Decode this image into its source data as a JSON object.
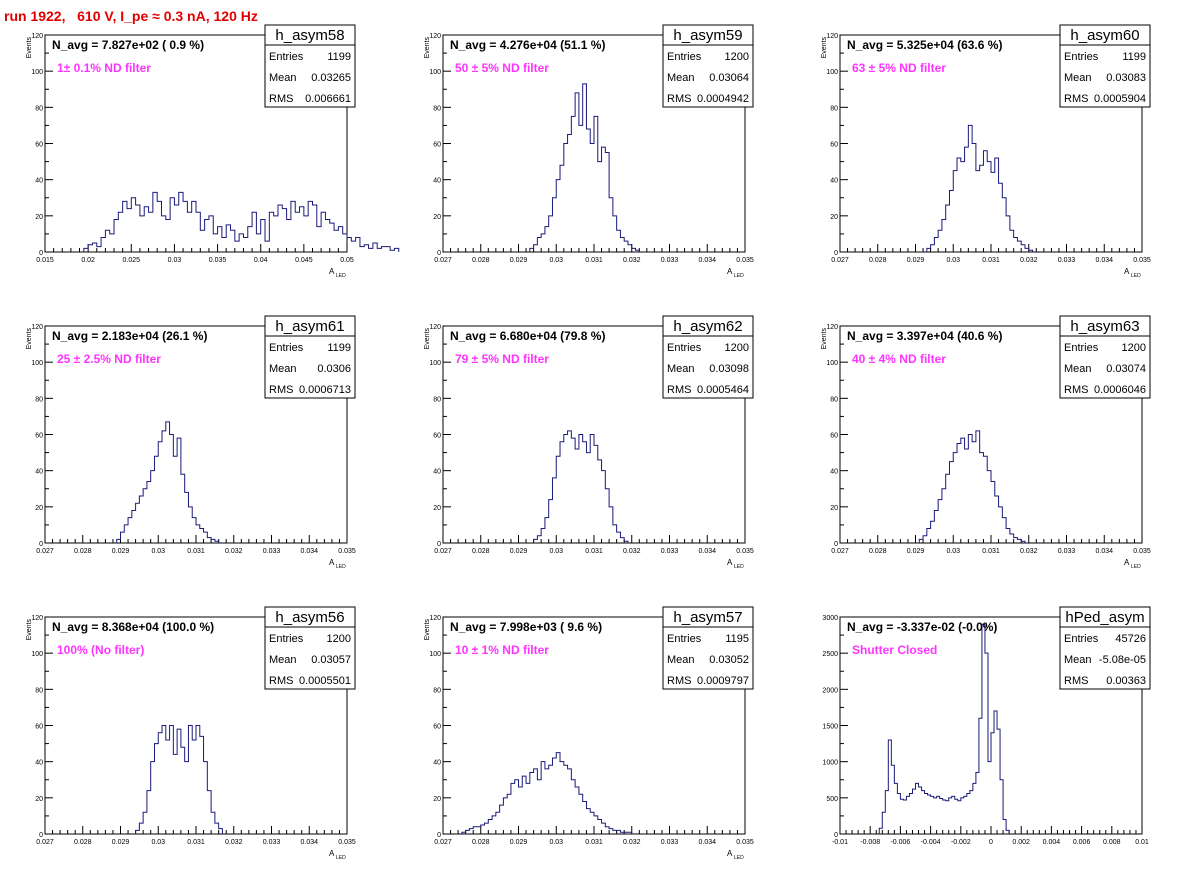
{
  "title": "run 1922,   610 V, I_pe ≈ 0.3 nA, 120 Hz",
  "stats_labels": {
    "entries": "Entries",
    "mean": "Mean",
    "rms": "RMS"
  },
  "colors": {
    "line": "#1a1a7a",
    "title": "#e00000",
    "filter": "#ff33ff"
  },
  "chart_data": [
    {
      "type": "histogram",
      "name": "h_asym58",
      "navg": "N_avg = 7.827e+02 ( 0.9 %)",
      "filter": "1± 0.1% ND filter",
      "entries": "1199",
      "mean": "0.03265",
      "rms": "0.006661",
      "ylabel": "Events",
      "xlabel": "A",
      "xlabel_sub": "LED",
      "xlim": [
        0.015,
        0.05
      ],
      "ylim": [
        0,
        120
      ],
      "xticks": [
        "0.015",
        "0.02",
        "0.025",
        "0.03",
        "0.035",
        "0.04",
        "0.045",
        "0.05"
      ],
      "yticks": [
        "0",
        "20",
        "40",
        "60",
        "80",
        "100",
        "120"
      ],
      "bin_start": 0.0195,
      "bin_width": 0.0005,
      "values": [
        2,
        4,
        5,
        3,
        8,
        12,
        10,
        18,
        22,
        28,
        24,
        30,
        26,
        20,
        25,
        22,
        33,
        28,
        20,
        18,
        30,
        26,
        33,
        28,
        22,
        28,
        22,
        12,
        18,
        20,
        10,
        14,
        8,
        15,
        12,
        6,
        10,
        8,
        14,
        22,
        10,
        18,
        6,
        22,
        20,
        26,
        24,
        18,
        28,
        22,
        25,
        20,
        28,
        26,
        14,
        22,
        18,
        16,
        12,
        14,
        10,
        8,
        6,
        8,
        3,
        4,
        2,
        5,
        2,
        3,
        3,
        1,
        2
      ]
    },
    {
      "type": "histogram",
      "name": "h_asym59",
      "navg": "N_avg = 4.276e+04 (51.1 %)",
      "filter": "50 ± 5% ND filter",
      "entries": "1200",
      "mean": "0.03064",
      "rms": "0.0004942",
      "ylabel": "Events",
      "xlabel": "A",
      "xlabel_sub": "LED",
      "xlim": [
        0.027,
        0.035
      ],
      "ylim": [
        0,
        120
      ],
      "xticks": [
        "0.027",
        "0.028",
        "0.029",
        "0.03",
        "0.031",
        "0.032",
        "0.033",
        "0.034",
        "0.035"
      ],
      "yticks": [
        "0",
        "20",
        "40",
        "60",
        "80",
        "100",
        "120"
      ],
      "bin_start": 0.0293,
      "bin_width": 0.0001,
      "values": [
        2,
        4,
        8,
        10,
        14,
        20,
        30,
        40,
        48,
        60,
        65,
        75,
        88,
        70,
        93,
        68,
        60,
        75,
        50,
        58,
        55,
        30,
        20,
        12,
        8,
        6,
        4,
        2,
        1
      ]
    },
    {
      "type": "histogram",
      "name": "h_asym60",
      "navg": "N_avg = 5.325e+04 (63.6 %)",
      "filter": "63 ± 5% ND filter",
      "entries": "1199",
      "mean": "0.03083",
      "rms": "0.0005904",
      "ylabel": "Events",
      "xlabel": "A",
      "xlabel_sub": "LED",
      "xlim": [
        0.027,
        0.035
      ],
      "ylim": [
        0,
        120
      ],
      "xticks": [
        "0.027",
        "0.028",
        "0.029",
        "0.03",
        "0.031",
        "0.032",
        "0.033",
        "0.034",
        "0.035"
      ],
      "yticks": [
        "0",
        "20",
        "40",
        "60",
        "80",
        "100",
        "120"
      ],
      "bin_start": 0.0293,
      "bin_width": 0.0001,
      "values": [
        2,
        4,
        8,
        12,
        18,
        26,
        34,
        45,
        52,
        50,
        58,
        70,
        60,
        45,
        48,
        56,
        50,
        44,
        52,
        38,
        30,
        20,
        12,
        8,
        6,
        4,
        2,
        1
      ]
    },
    {
      "type": "histogram",
      "name": "h_asym61",
      "navg": "N_avg = 2.183e+04 (26.1 %)",
      "filter": "25 ± 2.5% ND filter",
      "entries": "1199",
      "mean": "0.0306",
      "rms": "0.0006713",
      "ylabel": "Events",
      "xlabel": "A",
      "xlabel_sub": "LED",
      "xlim": [
        0.027,
        0.035
      ],
      "ylim": [
        0,
        120
      ],
      "xticks": [
        "0.027",
        "0.028",
        "0.029",
        "0.03",
        "0.031",
        "0.032",
        "0.033",
        "0.034",
        "0.035"
      ],
      "yticks": [
        "0",
        "20",
        "40",
        "60",
        "80",
        "100",
        "120"
      ],
      "bin_start": 0.0289,
      "bin_width": 0.0001,
      "values": [
        2,
        6,
        10,
        14,
        18,
        22,
        26,
        30,
        34,
        40,
        48,
        56,
        62,
        67,
        60,
        48,
        58,
        38,
        28,
        20,
        14,
        10,
        8,
        6,
        3,
        2,
        1
      ]
    },
    {
      "type": "histogram",
      "name": "h_asym62",
      "navg": "N_avg = 6.680e+04 (79.8 %)",
      "filter": "79 ± 5% ND filter",
      "entries": "1200",
      "mean": "0.03098",
      "rms": "0.0005464",
      "ylabel": "Events",
      "xlabel": "A",
      "xlabel_sub": "LED",
      "xlim": [
        0.027,
        0.035
      ],
      "ylim": [
        0,
        120
      ],
      "xticks": [
        "0.027",
        "0.028",
        "0.029",
        "0.03",
        "0.031",
        "0.032",
        "0.033",
        "0.034",
        "0.035"
      ],
      "yticks": [
        "0",
        "20",
        "40",
        "60",
        "80",
        "100",
        "120"
      ],
      "bin_start": 0.0294,
      "bin_width": 0.0001,
      "values": [
        2,
        4,
        8,
        14,
        24,
        36,
        48,
        56,
        60,
        62,
        58,
        52,
        60,
        56,
        50,
        60,
        54,
        46,
        40,
        30,
        20,
        10,
        6,
        3,
        1
      ]
    },
    {
      "type": "histogram",
      "name": "h_asym63",
      "navg": "N_avg = 3.397e+04 (40.6 %)",
      "filter": "40 ± 4% ND filter",
      "entries": "1200",
      "mean": "0.03074",
      "rms": "0.0006046",
      "ylabel": "Events",
      "xlabel": "A",
      "xlabel_sub": "LED",
      "xlim": [
        0.027,
        0.035
      ],
      "ylim": [
        0,
        120
      ],
      "xticks": [
        "0.027",
        "0.028",
        "0.029",
        "0.03",
        "0.031",
        "0.032",
        "0.033",
        "0.034",
        "0.035"
      ],
      "yticks": [
        "0",
        "20",
        "40",
        "60",
        "80",
        "100",
        "120"
      ],
      "bin_start": 0.0291,
      "bin_width": 0.0001,
      "values": [
        2,
        4,
        8,
        12,
        18,
        24,
        30,
        38,
        45,
        50,
        55,
        58,
        52,
        60,
        56,
        62,
        50,
        48,
        40,
        34,
        26,
        20,
        14,
        8,
        5,
        3,
        2,
        1
      ]
    },
    {
      "type": "histogram",
      "name": "h_asym56",
      "navg": "N_avg = 8.368e+04 (100.0 %)",
      "filter": "100% (No filter)",
      "entries": "1200",
      "mean": "0.03057",
      "rms": "0.0005501",
      "ylabel": "Events",
      "xlabel": "A",
      "xlabel_sub": "LED",
      "xlim": [
        0.027,
        0.035
      ],
      "ylim": [
        0,
        120
      ],
      "xticks": [
        "0.027",
        "0.028",
        "0.029",
        "0.03",
        "0.031",
        "0.032",
        "0.033",
        "0.034",
        "0.035"
      ],
      "yticks": [
        "0",
        "20",
        "40",
        "60",
        "80",
        "100",
        "120"
      ],
      "bin_start": 0.0294,
      "bin_width": 0.0001,
      "values": [
        2,
        6,
        12,
        24,
        40,
        50,
        56,
        60,
        52,
        60,
        44,
        58,
        48,
        40,
        60,
        52,
        60,
        54,
        40,
        24,
        12,
        6,
        3
      ]
    },
    {
      "type": "histogram",
      "name": "h_asym57",
      "navg": "N_avg = 7.998e+03 ( 9.6 %)",
      "filter": "10 ± 1% ND filter",
      "entries": "1195",
      "mean": "0.03052",
      "rms": "0.0009797",
      "ylabel": "Events",
      "xlabel": "A",
      "xlabel_sub": "LED",
      "xlim": [
        0.027,
        0.035
      ],
      "ylim": [
        0,
        120
      ],
      "xticks": [
        "0.027",
        "0.028",
        "0.029",
        "0.03",
        "0.031",
        "0.032",
        "0.033",
        "0.034",
        "0.035"
      ],
      "yticks": [
        "0",
        "20",
        "40",
        "60",
        "80",
        "100",
        "120"
      ],
      "bin_start": 0.0275,
      "bin_width": 0.0001,
      "values": [
        1,
        2,
        3,
        4,
        4,
        5,
        6,
        8,
        10,
        12,
        16,
        20,
        22,
        28,
        30,
        26,
        32,
        28,
        34,
        36,
        30,
        40,
        36,
        38,
        42,
        45,
        40,
        38,
        36,
        30,
        26,
        22,
        18,
        14,
        12,
        10,
        8,
        6,
        4,
        3,
        2,
        2,
        1,
        1,
        1
      ]
    },
    {
      "type": "histogram",
      "name": "hPed_asym",
      "navg": "N_avg = -3.337e-02 (-0.0%)",
      "filter": "Shutter Closed",
      "entries": "45726",
      "mean": "-5.08e-05",
      "rms": "0.00363",
      "ylabel": "",
      "xlabel": "",
      "xlabel_sub": "",
      "xlim": [
        -0.01,
        0.01
      ],
      "ylim": [
        0,
        3000
      ],
      "xticks": [
        "-0.01",
        "-0.008",
        "-0.006",
        "-0.004",
        "-0.002",
        "0",
        "0.002",
        "0.004",
        "0.006",
        "0.008",
        "0.01"
      ],
      "yticks": [
        "0",
        "500",
        "1000",
        "1500",
        "2000",
        "2500",
        "3000"
      ],
      "bin_start": -0.0074,
      "bin_width": 0.0002,
      "values": [
        80,
        300,
        600,
        1300,
        950,
        700,
        560,
        480,
        470,
        520,
        560,
        620,
        700,
        650,
        600,
        560,
        540,
        520,
        500,
        520,
        490,
        470,
        460,
        500,
        520,
        480,
        460,
        500,
        520,
        560,
        600,
        700,
        850,
        1600,
        2900,
        2500,
        1000,
        1400,
        1700,
        1450,
        750,
        200,
        50
      ]
    }
  ]
}
